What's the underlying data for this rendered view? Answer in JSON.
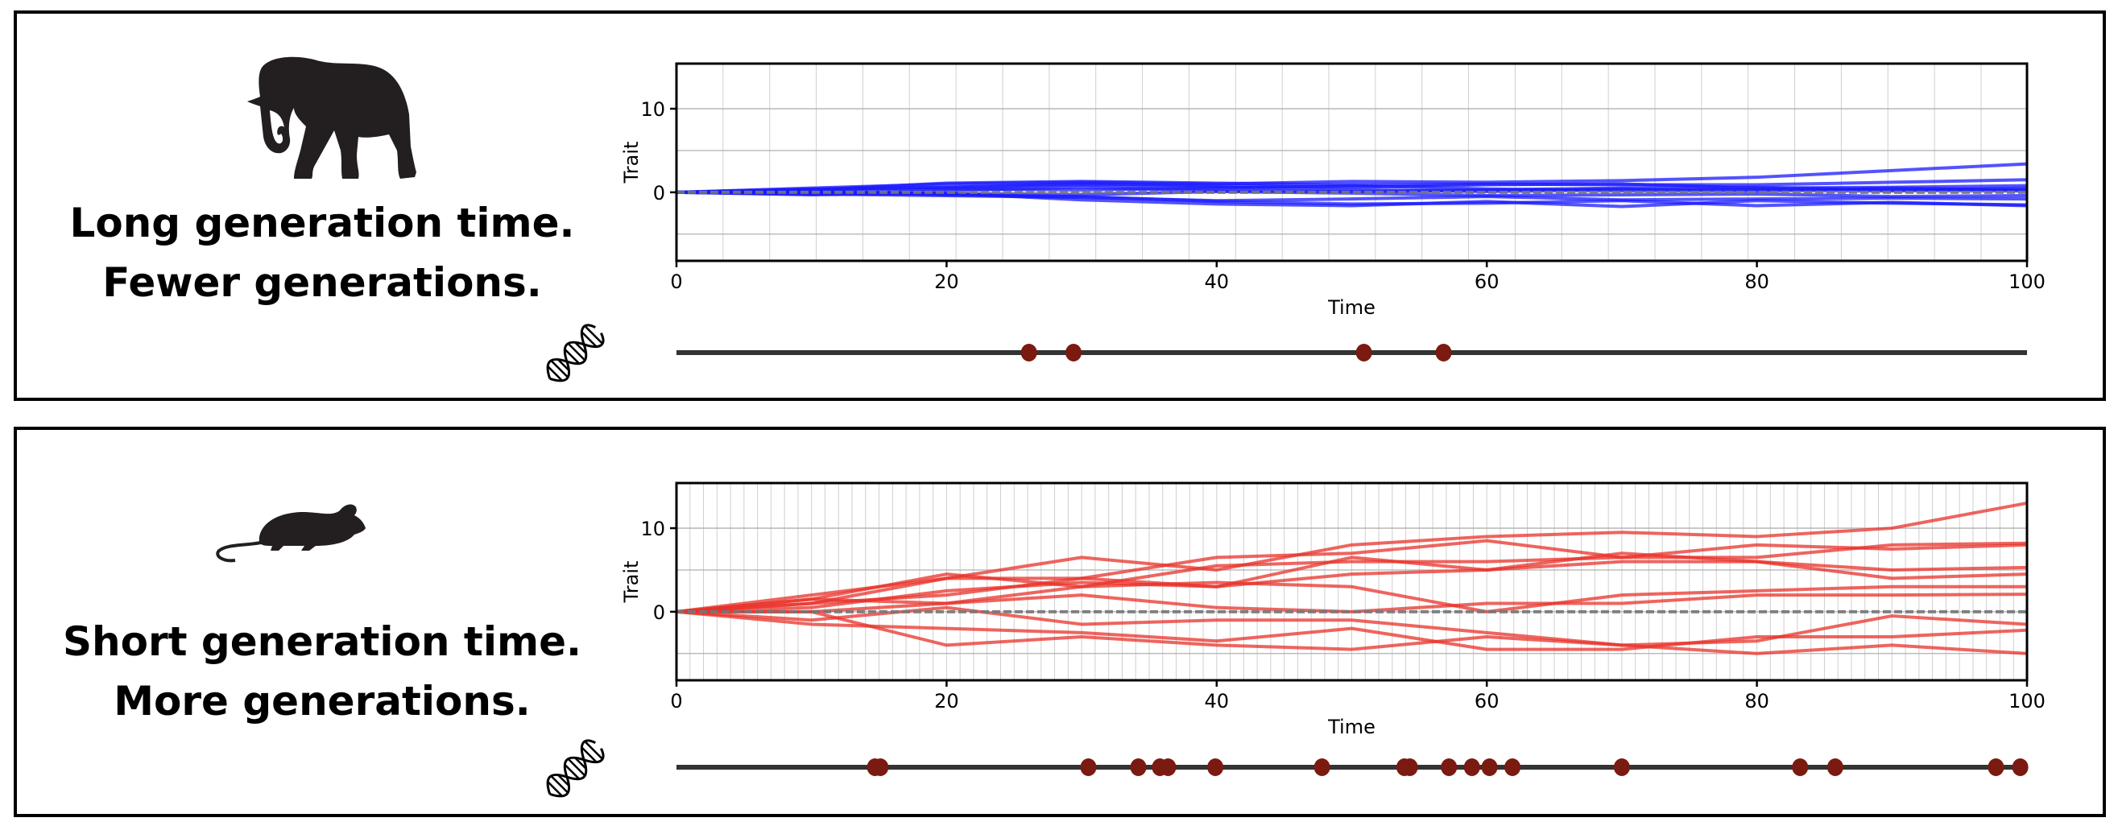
{
  "panels": [
    {
      "animal_icon": "elephant-icon",
      "caption_line1": "Long generation time.",
      "caption_line2": "Fewer generations.",
      "mutation_icon": "dna-icon"
    },
    {
      "animal_icon": "mouse-icon",
      "caption_line1": "Short generation time.",
      "caption_line2": "More generations.",
      "mutation_icon": "dna-icon"
    }
  ],
  "chart_data": [
    {
      "type": "line",
      "xlabel": "Time",
      "ylabel": "Trait",
      "xlim": [
        0,
        100
      ],
      "ylim": [
        -8.2,
        15.4
      ],
      "xticks": [
        "0",
        "20",
        "40",
        "60",
        "80",
        "100"
      ],
      "yticks": [
        "10",
        "0"
      ],
      "grid": true,
      "generation_interval": 3.45,
      "line_color": "#1a1aff",
      "reference_line": {
        "y": 0,
        "style": "dashed",
        "color": "#777777"
      },
      "x": [
        0,
        10,
        20,
        30,
        40,
        50,
        60,
        70,
        80,
        90,
        100
      ],
      "series": [
        {
          "values": [
            0,
            0.5,
            1.0,
            1.2,
            1.0,
            1.3,
            1.2,
            1.4,
            1.8,
            2.6,
            3.4
          ]
        },
        {
          "values": [
            0,
            0.3,
            1.1,
            1.3,
            1.1,
            0.9,
            1.0,
            0.9,
            0.9,
            1.2,
            1.5
          ]
        },
        {
          "values": [
            0,
            0.4,
            0.6,
            1.0,
            0.8,
            0.6,
            0.9,
            1.0,
            0.5,
            0.6,
            0.8
          ]
        },
        {
          "values": [
            0,
            0.2,
            0.4,
            0.3,
            0.5,
            0.8,
            0.4,
            0.2,
            0.3,
            0.2,
            0.5
          ]
        },
        {
          "values": [
            0,
            -0.2,
            0.2,
            0.6,
            0.2,
            0.1,
            0.3,
            0.5,
            0.6,
            0.3,
            0.2
          ]
        },
        {
          "values": [
            0,
            0.1,
            -0.2,
            -0.3,
            0.1,
            -0.1,
            -0.4,
            -0.3,
            -0.2,
            -0.5,
            -0.4
          ]
        },
        {
          "values": [
            0,
            -0.2,
            -0.4,
            -0.6,
            -1.0,
            -0.8,
            -0.5,
            -0.9,
            -0.8,
            -0.7,
            -0.8
          ]
        },
        {
          "values": [
            0,
            -0.3,
            -0.1,
            -0.9,
            -1.4,
            -1.6,
            -1.1,
            -1.7,
            -1.0,
            -1.3,
            -1.5
          ]
        },
        {
          "values": [
            0,
            0.0,
            -0.3,
            -0.5,
            -1.1,
            -1.4,
            -1.3,
            -1.0,
            -1.6,
            -1.2,
            -1.6
          ]
        },
        {
          "values": [
            0,
            0.3,
            0.6,
            0.9,
            0.6,
            0.3,
            0.1,
            0.4,
            0.2,
            0.5,
            0.3
          ]
        }
      ],
      "mutations": {
        "color": "#7a1a10",
        "times": [
          26.1,
          29.4,
          50.9,
          56.8
        ]
      }
    },
    {
      "type": "line",
      "xlabel": "Time",
      "ylabel": "Trait",
      "xlim": [
        0,
        100
      ],
      "ylim": [
        -8.2,
        15.4
      ],
      "xticks": [
        "0",
        "20",
        "40",
        "60",
        "80",
        "100"
      ],
      "yticks": [
        "10",
        "0"
      ],
      "grid": true,
      "generation_interval": 1,
      "line_color": "#e8322a",
      "reference_line": {
        "y": 0,
        "style": "dashed",
        "color": "#777777"
      },
      "x": [
        0,
        10,
        20,
        30,
        40,
        50,
        60,
        70,
        80,
        90,
        100
      ],
      "series": [
        {
          "values": [
            0,
            2,
            4,
            6.5,
            5,
            8,
            9,
            9.5,
            9,
            10,
            13
          ]
        },
        {
          "values": [
            0,
            1,
            4,
            4,
            6.5,
            7,
            8.5,
            6.5,
            8,
            7.5,
            8
          ]
        },
        {
          "values": [
            0,
            1.5,
            4.5,
            3,
            5.5,
            6,
            6,
            6.5,
            6.5,
            8,
            8.2
          ]
        },
        {
          "values": [
            0,
            1,
            2,
            4,
            3,
            6.5,
            5,
            7,
            6,
            4,
            4.5
          ]
        },
        {
          "values": [
            0,
            0.5,
            2.5,
            3.5,
            3,
            4.5,
            5,
            6,
            6,
            5,
            5.3
          ]
        },
        {
          "values": [
            0,
            0,
            1,
            3,
            3.5,
            3,
            0,
            2,
            2.5,
            3,
            3
          ]
        },
        {
          "values": [
            0,
            1.5,
            1,
            2,
            0.5,
            0,
            1,
            1,
            2,
            2,
            2.1
          ]
        },
        {
          "values": [
            0,
            -1,
            0.5,
            -1.5,
            -1,
            -1,
            -2.5,
            -4,
            -3.5,
            -0.5,
            -1.5
          ]
        },
        {
          "values": [
            0,
            -1.5,
            -2,
            -2.5,
            -3.5,
            -2,
            -4.5,
            -4.5,
            -3,
            -3,
            -2.2
          ]
        },
        {
          "values": [
            0,
            0,
            -4,
            -3,
            -4,
            -4.5,
            -3,
            -4,
            -5,
            -4,
            -5
          ]
        }
      ],
      "mutations": {
        "color": "#7a1a10",
        "times": [
          14.7,
          15.1,
          30.5,
          34.2,
          35.8,
          36.4,
          39.9,
          47.8,
          53.9,
          54.3,
          57.2,
          58.9,
          60.2,
          61.9,
          70.0,
          83.2,
          85.8,
          97.7,
          99.5
        ]
      }
    }
  ]
}
